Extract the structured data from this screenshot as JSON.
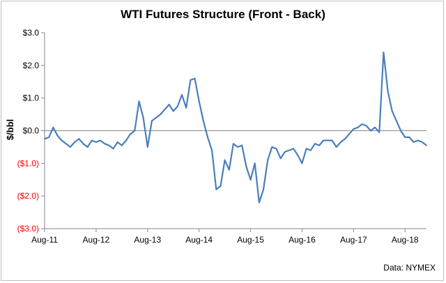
{
  "chart_data": {
    "type": "line",
    "title": "WTI Futures Structure (Front - Back)",
    "ylabel": "$/bbl",
    "xlabel": "",
    "source_note": "Data: NYMEX",
    "ylim": [
      -3.0,
      3.0
    ],
    "y_ticks": [
      {
        "value": 3,
        "label": "$3.0"
      },
      {
        "value": 2,
        "label": "$2.0"
      },
      {
        "value": 1,
        "label": "$1.0"
      },
      {
        "value": 0,
        "label": "$0.0"
      },
      {
        "value": -1,
        "label": "($1.0)"
      },
      {
        "value": -2,
        "label": "($2.0)"
      },
      {
        "value": -3,
        "label": "($3.0)"
      }
    ],
    "x_tick_labels": [
      "Aug-11",
      "Aug-12",
      "Aug-13",
      "Aug-14",
      "Aug-15",
      "Aug-16",
      "Aug-17",
      "Aug-18"
    ],
    "xlim": [
      "2011-08",
      "2019-01"
    ],
    "grid": false,
    "zero_line": true,
    "colors": {
      "line": "#4a7ebb",
      "positive_tick": "#000000",
      "negative_tick": "#ff0000",
      "axis": "#868686"
    },
    "series": [
      {
        "x": [
          "2011-08",
          "2011-09",
          "2011-10",
          "2011-11",
          "2011-12",
          "2012-01",
          "2012-02",
          "2012-03",
          "2012-04",
          "2012-05",
          "2012-06",
          "2012-07",
          "2012-08",
          "2012-09",
          "2012-10",
          "2012-11",
          "2012-12",
          "2013-01",
          "2013-02",
          "2013-03",
          "2013-04",
          "2013-05",
          "2013-06",
          "2013-07",
          "2013-08",
          "2013-09",
          "2013-10",
          "2013-11",
          "2013-12",
          "2014-01",
          "2014-02",
          "2014-03",
          "2014-04",
          "2014-05",
          "2014-06",
          "2014-07",
          "2014-08",
          "2014-09",
          "2014-10",
          "2014-11",
          "2014-12",
          "2015-01",
          "2015-02",
          "2015-03",
          "2015-04",
          "2015-05",
          "2015-06",
          "2015-07",
          "2015-08",
          "2015-09",
          "2015-10",
          "2015-11",
          "2015-12",
          "2016-01",
          "2016-02",
          "2016-03",
          "2016-04",
          "2016-05",
          "2016-06",
          "2016-07",
          "2016-08",
          "2016-09",
          "2016-10",
          "2016-11",
          "2016-12",
          "2017-01",
          "2017-02",
          "2017-03",
          "2017-04",
          "2017-05",
          "2017-06",
          "2017-07",
          "2017-08",
          "2017-09",
          "2017-10",
          "2017-11",
          "2017-12",
          "2018-01",
          "2018-02",
          "2018-03",
          "2018-04",
          "2018-05",
          "2018-06",
          "2018-07",
          "2018-08",
          "2018-09",
          "2018-10",
          "2018-11",
          "2018-12",
          "2019-01"
        ],
        "values": [
          -0.25,
          -0.2,
          0.1,
          -0.15,
          -0.3,
          -0.4,
          -0.5,
          -0.35,
          -0.25,
          -0.4,
          -0.5,
          -0.3,
          -0.35,
          -0.3,
          -0.4,
          -0.45,
          -0.55,
          -0.35,
          -0.45,
          -0.3,
          -0.1,
          0.0,
          0.9,
          0.4,
          -0.5,
          0.3,
          0.4,
          0.5,
          0.65,
          0.8,
          0.6,
          0.75,
          1.1,
          0.7,
          1.55,
          1.6,
          0.9,
          0.3,
          -0.2,
          -0.6,
          -1.8,
          -1.7,
          -0.9,
          -1.2,
          -0.4,
          -0.5,
          -0.45,
          -1.1,
          -1.5,
          -1.0,
          -2.2,
          -1.8,
          -0.9,
          -0.5,
          -0.55,
          -0.85,
          -0.65,
          -0.6,
          -0.55,
          -0.75,
          -1.0,
          -0.55,
          -0.6,
          -0.4,
          -0.45,
          -0.3,
          -0.3,
          -0.3,
          -0.5,
          -0.35,
          -0.25,
          -0.1,
          0.05,
          0.1,
          0.2,
          0.15,
          0.0,
          0.1,
          -0.05,
          2.4,
          1.2,
          0.6,
          0.3,
          0.0,
          -0.2,
          -0.2,
          -0.35,
          -0.3,
          -0.35,
          -0.45
        ]
      }
    ]
  }
}
